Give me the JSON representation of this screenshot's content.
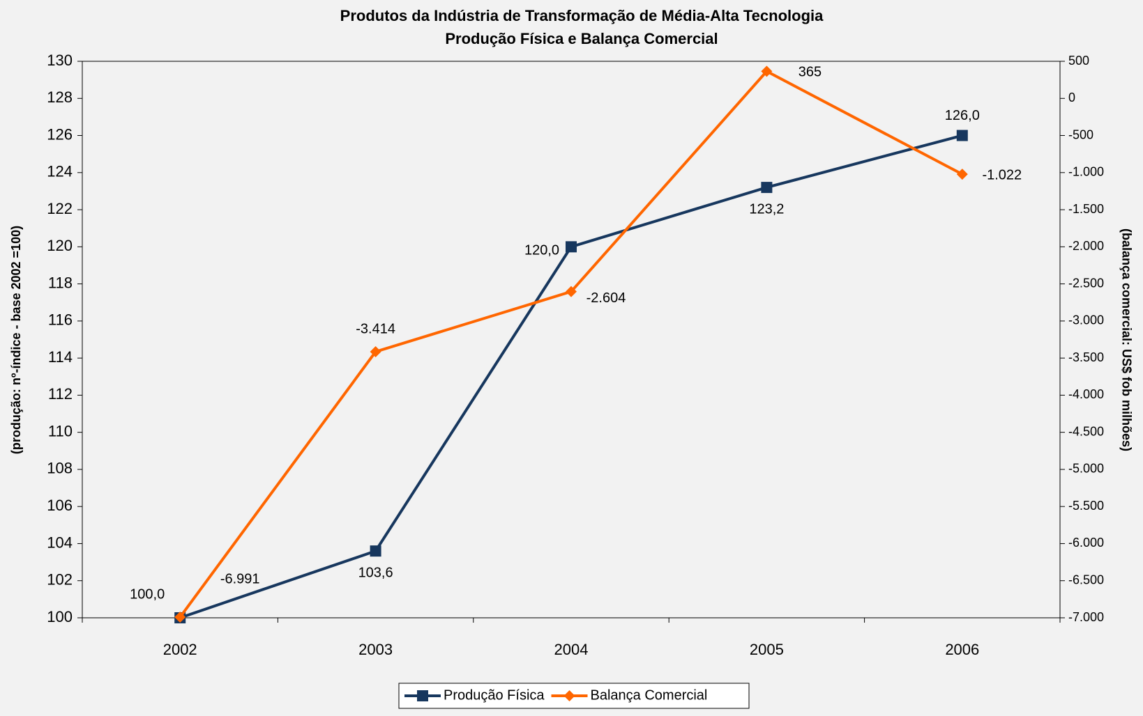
{
  "chart_data": {
    "type": "line",
    "title": "Produtos da Indústria de Transformação de Média-Alta Tecnologia",
    "subtitle": "Produção Física e Balança Comercial",
    "y_label": "(produção: nº-índice - base 2002 =100)",
    "y2_label": "(balança comercial: US$ fob milhões)",
    "categories": [
      "2002",
      "2003",
      "2004",
      "2005",
      "2006"
    ],
    "series": [
      {
        "name": "Produção Física",
        "color": "#17375e",
        "marker": "square",
        "values": [
          100.0,
          103.6,
          120.0,
          123.2,
          126.0
        ],
        "value_labels": [
          "100,0",
          "103,6",
          "120,0",
          "123,2",
          "126,0"
        ]
      },
      {
        "name": "Balança Comercial",
        "color": "#ff6600",
        "marker": "diamond",
        "axis": "y2",
        "values": [
          -6991,
          -3414,
          -2604,
          365,
          -1022
        ],
        "value_labels": [
          "-6.991",
          "-3.414",
          "-2.604",
          "365",
          "-1.022"
        ]
      }
    ],
    "ylim": [
      100,
      130
    ],
    "yticks": [
      100,
      102,
      104,
      106,
      108,
      110,
      112,
      114,
      116,
      118,
      120,
      122,
      124,
      126,
      128,
      130
    ],
    "y2lim": [
      -7000,
      500
    ],
    "y2ticks": [
      {
        "value": -7000,
        "label": "-7.000"
      },
      {
        "value": -6500,
        "label": "-6.500"
      },
      {
        "value": -6000,
        "label": "-6.000"
      },
      {
        "value": -5500,
        "label": "-5.500"
      },
      {
        "value": -5000,
        "label": "-5.000"
      },
      {
        "value": -4500,
        "label": "-4.500"
      },
      {
        "value": -4000,
        "label": "-4.000"
      },
      {
        "value": -3500,
        "label": "-3.500"
      },
      {
        "value": -3000,
        "label": "-3.000"
      },
      {
        "value": -2500,
        "label": "-2.500"
      },
      {
        "value": -2000,
        "label": "-2.000"
      },
      {
        "value": -1500,
        "label": "-1.500"
      },
      {
        "value": -1000,
        "label": "-1.000"
      },
      -500,
      0,
      500
    ],
    "legend": "bottom"
  }
}
